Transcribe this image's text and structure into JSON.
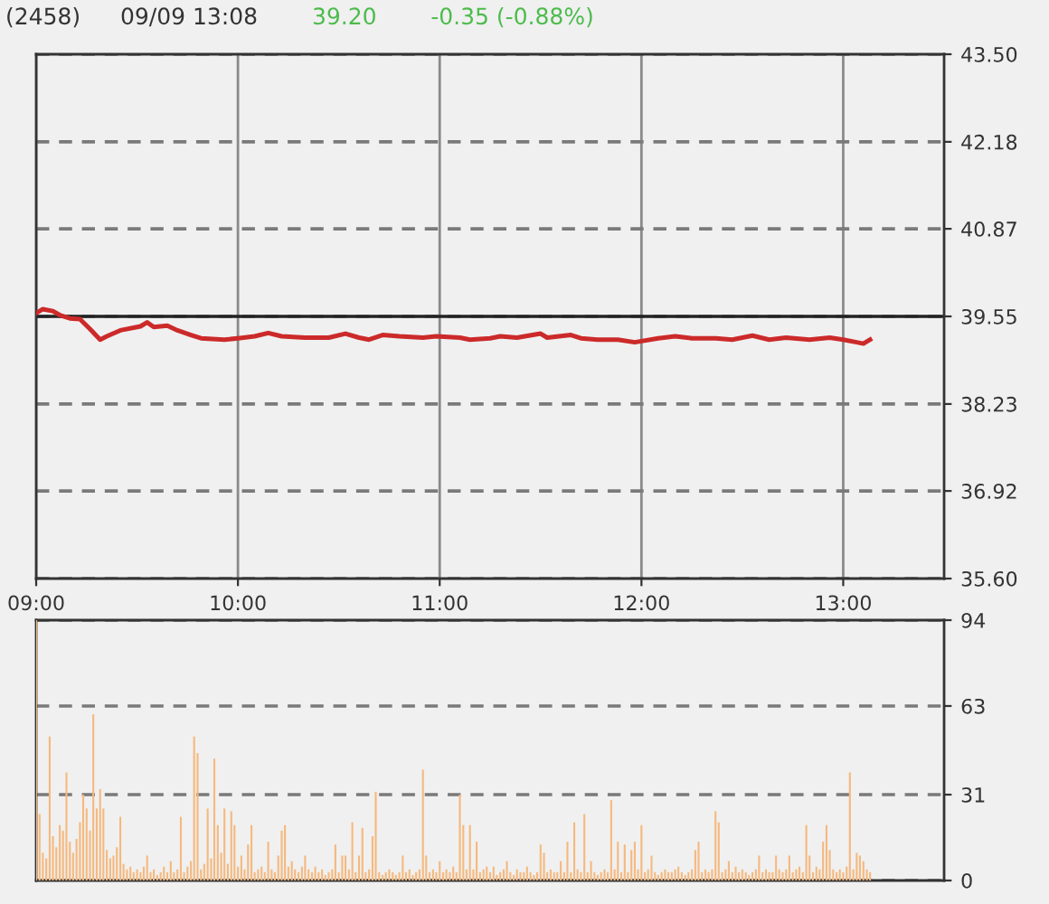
{
  "chart_data": [
    {
      "type": "line",
      "title": "(2458)",
      "subtitle": "09/09 13:08",
      "annotations": [
        "39.20",
        "-0.35 (-0.88%)"
      ],
      "x": [
        9,
        9.033,
        9.083,
        9.117,
        9.167,
        9.217,
        9.267,
        9.317,
        9.35,
        9.417,
        9.483,
        9.517,
        9.55,
        9.583,
        9.65,
        9.7,
        9.767,
        9.817,
        9.933,
        10,
        10.083,
        10.15,
        10.217,
        10.333,
        10.45,
        10.533,
        10.6,
        10.65,
        10.717,
        10.8,
        10.917,
        10.983,
        11.1,
        11.15,
        11.25,
        11.3,
        11.383,
        11.5,
        11.533,
        11.65,
        11.7,
        11.783,
        11.883,
        11.967,
        12.083,
        12.167,
        12.25,
        12.367,
        12.45,
        12.55,
        12.633,
        12.717,
        12.833,
        12.933,
        13,
        13.067,
        13.1,
        13.133
      ],
      "series": [
        {
          "color": "#cc2a2a",
          "values": [
            39.6,
            39.66,
            39.63,
            39.57,
            39.52,
            39.51,
            39.36,
            39.2,
            39.25,
            39.34,
            39.38,
            39.4,
            39.46,
            39.39,
            39.41,
            39.34,
            39.27,
            39.22,
            39.2,
            39.22,
            39.25,
            39.3,
            39.25,
            39.23,
            39.23,
            39.29,
            39.23,
            39.2,
            39.27,
            39.25,
            39.23,
            39.25,
            39.23,
            39.2,
            39.22,
            39.25,
            39.23,
            39.29,
            39.23,
            39.27,
            39.22,
            39.2,
            39.2,
            39.16,
            39.22,
            39.25,
            39.22,
            39.22,
            39.2,
            39.26,
            39.2,
            39.23,
            39.2,
            39.23,
            39.2,
            39.16,
            39.14,
            39.2
          ]
        }
      ],
      "xlim": [
        9,
        13.5
      ],
      "xticks": [
        {
          "value": 9,
          "label": "09:00"
        },
        {
          "value": 10,
          "label": "10:00"
        },
        {
          "value": 11,
          "label": "11:00"
        },
        {
          "value": 12,
          "label": "12:00"
        },
        {
          "value": 13,
          "label": "13:00"
        }
      ],
      "ylim": [
        35.6,
        43.5
      ],
      "yticks": [
        {
          "value": 35.6,
          "label": "35.60"
        },
        36.92,
        38.23,
        39.55,
        40.87,
        42.18,
        {
          "value": 43.5,
          "label": "43.50"
        }
      ],
      "ref_lines": [
        {
          "axis": "y",
          "value": 39.55,
          "color": "#222222"
        }
      ],
      "grid": true
    },
    {
      "type": "bar",
      "color": "#f5b97f",
      "xlim": [
        9,
        13.5
      ],
      "ylim": [
        0,
        94
      ],
      "yticks": [
        0,
        31,
        63,
        94
      ],
      "grid": "y",
      "tick_labels": "y",
      "x": [
        9,
        9.017,
        9.033,
        9.05,
        9.067,
        9.083,
        9.1,
        9.117,
        9.133,
        9.15,
        9.167,
        9.183,
        9.2,
        9.217,
        9.233,
        9.25,
        9.267,
        9.283,
        9.3,
        9.317,
        9.333,
        9.35,
        9.367,
        9.383,
        9.4,
        9.417,
        9.433,
        9.45,
        9.467,
        9.483,
        9.5,
        9.517,
        9.533,
        9.55,
        9.567,
        9.583,
        9.6,
        9.617,
        9.633,
        9.65,
        9.667,
        9.683,
        9.7,
        9.717,
        9.733,
        9.75,
        9.767,
        9.783,
        9.8,
        9.817,
        9.833,
        9.85,
        9.867,
        9.883,
        9.9,
        9.917,
        9.933,
        9.95,
        9.967,
        9.983,
        10,
        10.017,
        10.033,
        10.05,
        10.067,
        10.083,
        10.1,
        10.117,
        10.133,
        10.15,
        10.167,
        10.183,
        10.2,
        10.217,
        10.233,
        10.25,
        10.267,
        10.283,
        10.3,
        10.317,
        10.333,
        10.35,
        10.367,
        10.383,
        10.4,
        10.417,
        10.433,
        10.45,
        10.467,
        10.483,
        10.5,
        10.517,
        10.533,
        10.55,
        10.567,
        10.583,
        10.6,
        10.617,
        10.633,
        10.65,
        10.667,
        10.683,
        10.7,
        10.717,
        10.733,
        10.75,
        10.767,
        10.783,
        10.8,
        10.817,
        10.833,
        10.85,
        10.867,
        10.883,
        10.9,
        10.917,
        10.933,
        10.95,
        10.967,
        10.983,
        11,
        11.017,
        11.033,
        11.05,
        11.067,
        11.083,
        11.1,
        11.117,
        11.133,
        11.15,
        11.167,
        11.183,
        11.2,
        11.217,
        11.233,
        11.25,
        11.267,
        11.283,
        11.3,
        11.317,
        11.333,
        11.35,
        11.367,
        11.383,
        11.4,
        11.417,
        11.433,
        11.45,
        11.467,
        11.483,
        11.5,
        11.517,
        11.533,
        11.55,
        11.567,
        11.583,
        11.6,
        11.617,
        11.633,
        11.65,
        11.667,
        11.683,
        11.7,
        11.717,
        11.733,
        11.75,
        11.767,
        11.783,
        11.8,
        11.817,
        11.833,
        11.85,
        11.867,
        11.883,
        11.9,
        11.917,
        11.933,
        11.95,
        11.967,
        11.983,
        12,
        12.017,
        12.033,
        12.05,
        12.067,
        12.083,
        12.1,
        12.117,
        12.133,
        12.15,
        12.167,
        12.183,
        12.2,
        12.217,
        12.233,
        12.25,
        12.267,
        12.283,
        12.3,
        12.317,
        12.333,
        12.35,
        12.367,
        12.383,
        12.4,
        12.417,
        12.433,
        12.45,
        12.467,
        12.483,
        12.5,
        12.517,
        12.533,
        12.55,
        12.567,
        12.583,
        12.6,
        12.617,
        12.633,
        12.65,
        12.667,
        12.683,
        12.7,
        12.717,
        12.733,
        12.75,
        12.767,
        12.783,
        12.8,
        12.817,
        12.833,
        12.85,
        12.867,
        12.883,
        12.9,
        12.917,
        12.933,
        12.95,
        12.967,
        12.983,
        13,
        13.017,
        13.033,
        13.05,
        13.067,
        13.083,
        13.1,
        13.117,
        13.133
      ],
      "values": [
        94,
        24,
        10,
        8,
        52,
        16,
        12,
        20,
        18,
        39,
        14,
        10,
        15,
        21,
        31,
        26,
        18,
        60,
        26,
        33,
        26,
        11,
        8,
        9,
        12,
        23,
        6,
        4,
        5,
        3,
        4,
        3,
        5,
        9,
        3,
        4,
        2,
        3,
        5,
        3,
        7,
        3,
        4,
        23,
        3,
        5,
        7,
        52,
        46,
        4,
        6,
        26,
        8,
        44,
        20,
        10,
        26,
        6,
        25,
        20,
        5,
        9,
        4,
        13,
        20,
        3,
        4,
        5,
        3,
        14,
        4,
        3,
        9,
        18,
        20,
        5,
        7,
        4,
        3,
        5,
        9,
        4,
        3,
        5,
        3,
        4,
        2,
        3,
        4,
        13,
        3,
        9,
        9,
        4,
        21,
        3,
        9,
        19,
        3,
        4,
        16,
        32,
        3,
        2,
        3,
        4,
        3,
        2,
        3,
        9,
        3,
        4,
        2,
        3,
        4,
        40,
        9,
        3,
        4,
        3,
        7,
        3,
        4,
        3,
        5,
        3,
        31,
        20,
        4,
        20,
        4,
        14,
        3,
        4,
        5,
        3,
        5,
        2,
        3,
        4,
        7,
        3,
        2,
        4,
        3,
        3,
        5,
        3,
        2,
        3,
        13,
        10,
        3,
        4,
        3,
        3,
        7,
        3,
        14,
        3,
        21,
        4,
        3,
        24,
        3,
        7,
        3,
        2,
        3,
        4,
        3,
        29,
        4,
        14,
        3,
        13,
        3,
        11,
        14,
        4,
        20,
        3,
        4,
        9,
        3,
        2,
        3,
        4,
        3,
        3,
        4,
        5,
        3,
        2,
        3,
        4,
        11,
        14,
        3,
        4,
        3,
        4,
        25,
        21,
        3,
        4,
        7,
        3,
        5,
        3,
        4,
        3,
        2,
        3,
        4,
        9,
        3,
        4,
        3,
        3,
        9,
        4,
        3,
        4,
        9,
        3,
        4,
        5,
        3,
        20,
        9,
        3,
        5,
        4,
        14,
        20,
        11,
        4,
        3,
        4,
        3,
        5,
        39,
        4,
        10,
        9,
        7,
        4,
        3
      ]
    }
  ]
}
